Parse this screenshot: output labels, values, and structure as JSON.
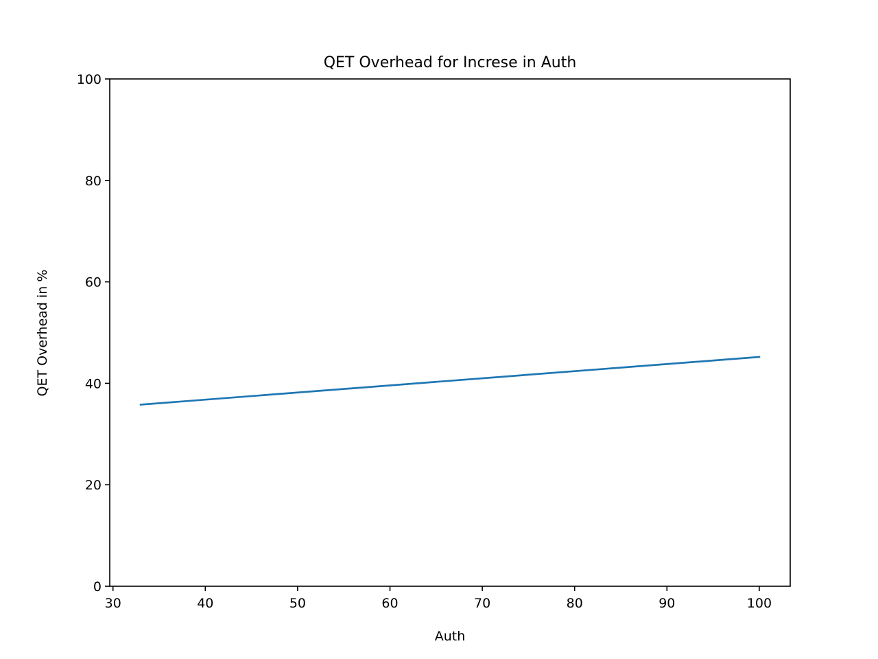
{
  "chart_data": {
    "type": "line",
    "title": "QET Overhead for Increse in Auth",
    "xlabel": "Auth",
    "ylabel": "QET Overhead in %",
    "xlim": [
      29.65,
      103.35
    ],
    "ylim": [
      0,
      100
    ],
    "xticks": [
      30,
      40,
      50,
      60,
      70,
      80,
      90,
      100
    ],
    "yticks": [
      0,
      20,
      40,
      60,
      80,
      100
    ],
    "grid": false,
    "series": [
      {
        "color": "#1f77b4",
        "x": [
          33,
          100
        ],
        "y": [
          35.8,
          45.2
        ]
      }
    ]
  }
}
